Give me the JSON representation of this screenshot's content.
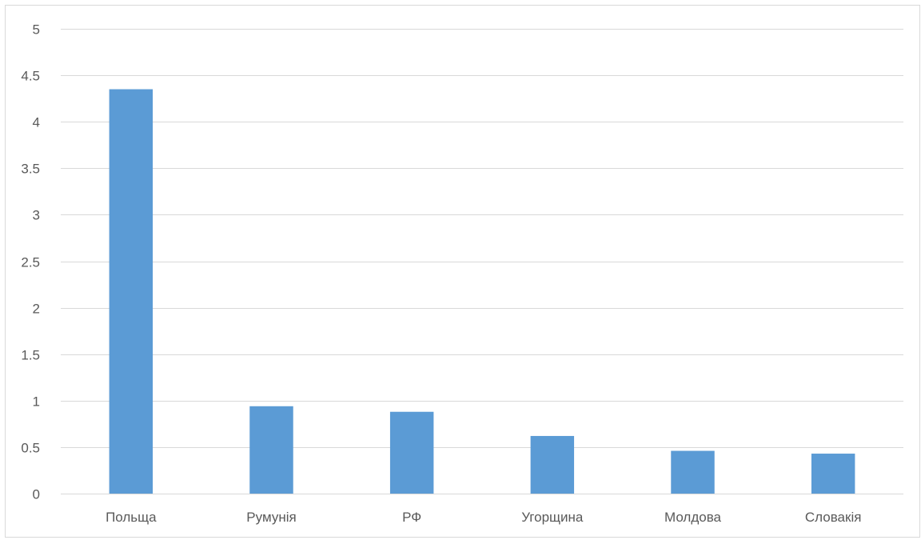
{
  "chart_data": {
    "type": "bar",
    "title": "",
    "xlabel": "",
    "ylabel": "",
    "categories": [
      "Польща",
      "Румунія",
      "РФ",
      "Угорщина",
      "Молдова",
      "Словакія"
    ],
    "values": [
      4.35,
      0.94,
      0.88,
      0.62,
      0.46,
      0.43
    ],
    "ylim": [
      0,
      5
    ],
    "yticks": [
      "0",
      "0.5",
      "1",
      "1.5",
      "2",
      "2.5",
      "3",
      "3.5",
      "4",
      "4.5",
      "5"
    ],
    "grid": true,
    "legend": "none",
    "colors": {
      "bar": "#5b9bd5",
      "grid": "#d9d9d9",
      "text": "#595959"
    }
  }
}
